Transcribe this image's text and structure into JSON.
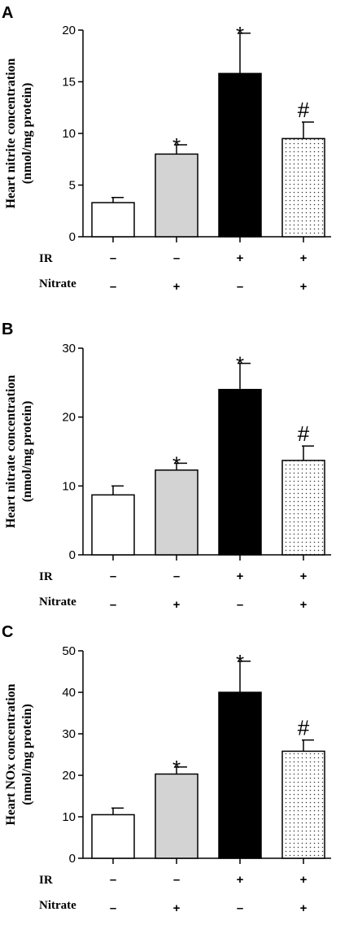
{
  "chart_data": [
    {
      "type": "bar",
      "panel": "A",
      "ylabel_line1": "Heart nitrite concentration",
      "ylabel_line2": "(nmol/mg protein)",
      "ylim": [
        0,
        20
      ],
      "yticks": [
        0,
        5,
        10,
        15,
        20
      ],
      "values": [
        3.3,
        8.0,
        15.8,
        9.5
      ],
      "errors": [
        0.5,
        0.9,
        3.9,
        1.6
      ],
      "markers": [
        "",
        "*",
        "*",
        "#"
      ]
    },
    {
      "type": "bar",
      "panel": "B",
      "ylabel_line1": "Heart nitrate concentration",
      "ylabel_line2": "(nmol/mg protein)",
      "ylim": [
        0,
        30
      ],
      "yticks": [
        0,
        10,
        20,
        30
      ],
      "values": [
        8.7,
        12.3,
        24.0,
        13.7
      ],
      "errors": [
        1.3,
        1.0,
        3.8,
        2.1
      ],
      "markers": [
        "",
        "*",
        "*",
        "#"
      ]
    },
    {
      "type": "bar",
      "panel": "C",
      "ylabel_line1": "Heart NOx concentration",
      "ylabel_line2": "(nmol/mg protein)",
      "ylim": [
        0,
        50
      ],
      "yticks": [
        0,
        10,
        20,
        30,
        40,
        50
      ],
      "values": [
        10.5,
        20.3,
        40.0,
        25.8
      ],
      "errors": [
        1.6,
        1.7,
        7.5,
        2.7
      ],
      "markers": [
        "",
        "*",
        "*",
        "#"
      ]
    }
  ],
  "groups": {
    "row1_label": "IR",
    "row1_signs": [
      "–",
      "–",
      "+",
      "+"
    ],
    "row2_label": "Nitrate",
    "row2_signs": [
      "–",
      "+",
      "–",
      "+"
    ]
  },
  "bar_fills": [
    "#ffffff",
    "#d3d3d3",
    "#000000",
    "dots"
  ]
}
